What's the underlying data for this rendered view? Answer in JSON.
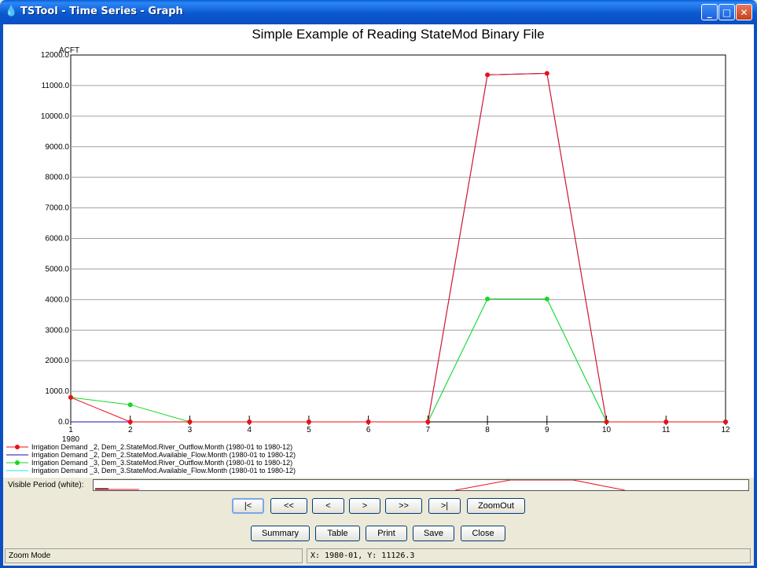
{
  "window": {
    "title": "TSTool - Time Series - Graph",
    "controls": {
      "minimize": "_",
      "maximize": "□",
      "close": "✕"
    }
  },
  "chart_data": {
    "type": "line",
    "title": "Simple Example of Reading StateMod Binary File",
    "ylabel": "ACFT",
    "ylim": [
      0,
      12000
    ],
    "yticks": [
      "0.0",
      "1000.0",
      "2000.0",
      "3000.0",
      "4000.0",
      "5000.0",
      "6000.0",
      "7000.0",
      "8000.0",
      "9000.0",
      "10000.0",
      "11000.0",
      "12000.0"
    ],
    "x": [
      1,
      2,
      3,
      4,
      5,
      6,
      7,
      8,
      9,
      10,
      11,
      12
    ],
    "xticks": [
      "1",
      "2",
      "3",
      "4",
      "5",
      "6",
      "7",
      "8",
      "9",
      "10",
      "11",
      "12"
    ],
    "xlabel_secondary": "1980",
    "grid": true,
    "series": [
      {
        "name": "Irrigation Demand _2, Dem_2.StateMod.River_Outflow.Month (1980-01 to 1980-12)",
        "color": "#E8101A",
        "markers": true,
        "values": [
          800,
          0,
          0,
          0,
          0,
          0,
          0,
          11350,
          11400,
          0,
          0,
          0
        ]
      },
      {
        "name": "Irrigation Demand _2, Dem_2.StateMod.Available_Flow.Month (1980-01 to 1980-12)",
        "color": "#1010B0",
        "markers": false,
        "values": [
          0,
          0,
          0,
          0,
          0,
          0,
          0,
          11350,
          11400,
          0,
          0,
          0
        ]
      },
      {
        "name": "Irrigation Demand _3, Dem_3.StateMod.River_Outflow.Month (1980-01 to 1980-12)",
        "color": "#17D820",
        "markers": true,
        "values": [
          800,
          560,
          0,
          0,
          0,
          0,
          0,
          4020,
          4020,
          0,
          0,
          0
        ]
      },
      {
        "name": "Irrigation Demand _3, Dem_3.StateMod.Available_Flow.Month (1980-01 to 1980-12)",
        "color": "#19E6E6",
        "markers": false,
        "values": [
          0,
          0,
          0,
          0,
          0,
          0,
          0,
          4020,
          4020,
          0,
          0,
          0
        ]
      }
    ]
  },
  "visible_period": {
    "label": "Visible Period (white):"
  },
  "nav_buttons": [
    "|<",
    "<<",
    "<",
    ">",
    ">>",
    ">|",
    "ZoomOut"
  ],
  "action_buttons": [
    "Summary",
    "Table",
    "Print",
    "Save",
    "Close"
  ],
  "status": {
    "mode": "Zoom Mode",
    "coords": "X:  1980-01,  Y:  11126.3"
  }
}
